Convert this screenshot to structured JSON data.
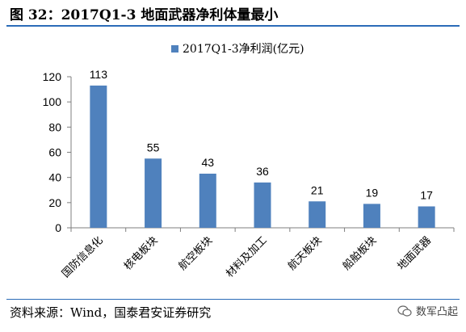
{
  "figure": {
    "title": "图 32：2017Q1-3 地面武器净利体量最小",
    "source": "资料来源：Wind，国泰君安证券研究",
    "watermark": "数军凸起"
  },
  "colors": {
    "bar": "#4f81bd",
    "rule": "#2b6cb8"
  },
  "chart_data": {
    "type": "bar",
    "categories": [
      "国防信息化",
      "核电板块",
      "航空板块",
      "材料及加工",
      "航天板块",
      "船舶板块",
      "地面武器"
    ],
    "series": [
      {
        "name": "2017Q1-3净利润(亿元)",
        "values": [
          113,
          55,
          43,
          36,
          21,
          19,
          17
        ]
      }
    ],
    "data_labels": [
      "113",
      "55",
      "43",
      "36",
      "21",
      "19",
      "17"
    ],
    "yticks": [
      "0",
      "20",
      "40",
      "60",
      "80",
      "100",
      "120"
    ],
    "ylim": [
      0,
      120
    ],
    "grid": false,
    "legend": "top-center"
  }
}
